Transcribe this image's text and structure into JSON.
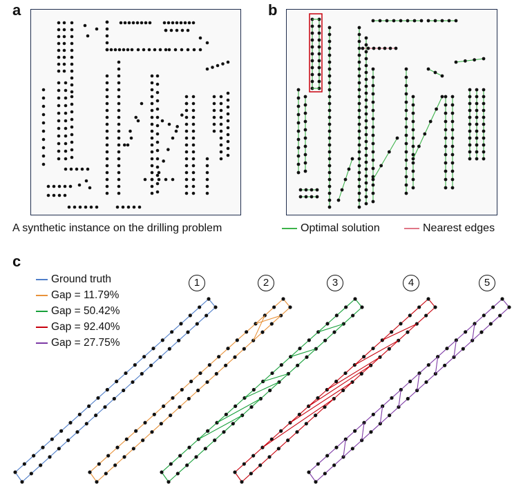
{
  "panels": {
    "a": {
      "letter": "a",
      "caption": "A synthetic instance on the drilling problem"
    },
    "b": {
      "letter": "b"
    },
    "c": {
      "letter": "c"
    }
  },
  "legend_b": [
    {
      "label": "Optimal solution",
      "color": "#3cb34a"
    },
    {
      "label": "Nearest edges",
      "color": "#e07686"
    }
  ],
  "legend_c": [
    {
      "label": "Ground truth",
      "color": "#4f7ec9"
    },
    {
      "label": "Gap = 11.79%",
      "color": "#e8923a"
    },
    {
      "label": "Gap = 50.42%",
      "color": "#17a03a"
    },
    {
      "label": "Gap = 92.40%",
      "color": "#c8000c"
    },
    {
      "label": "Gap = 27.75%",
      "color": "#7d3aa5"
    }
  ],
  "tour_numbers": [
    "1",
    "2",
    "3",
    "4",
    "5"
  ],
  "colors": {
    "frame_border": "#1f2d4d",
    "node": "#111111",
    "highlight_box": "#c8000c"
  }
}
